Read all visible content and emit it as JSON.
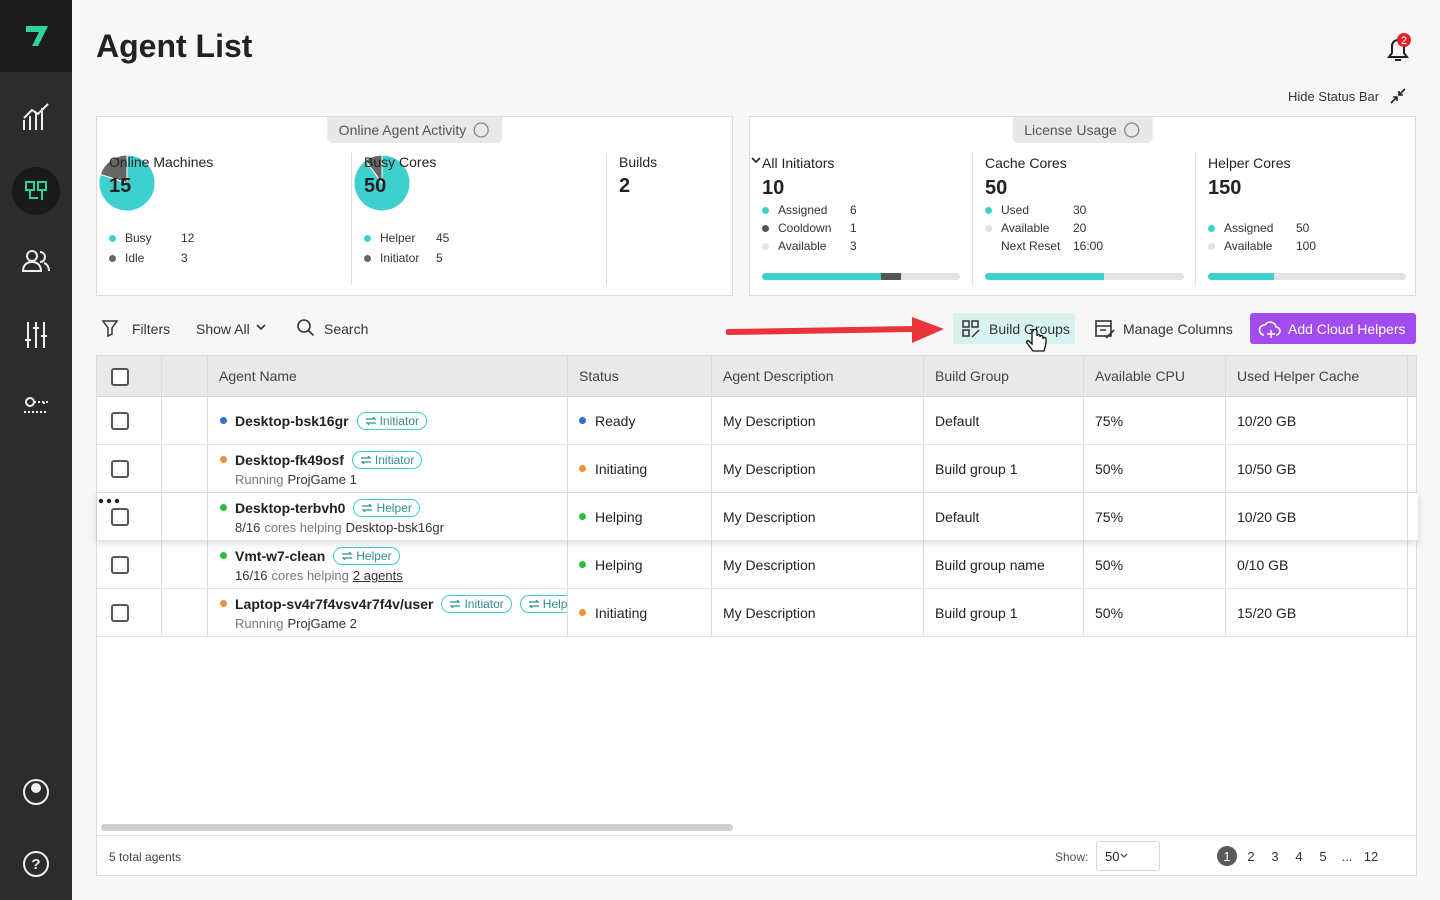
{
  "header": {
    "title": "Agent List",
    "notifications": 2,
    "hide_status_bar": "Hide Status Bar"
  },
  "online_agent_activity": {
    "title": "Online Agent Activity",
    "cards": [
      {
        "label": "Online Machines",
        "total": 15,
        "legend": [
          {
            "name": "Busy",
            "value": 12,
            "color": "#3ecfcf"
          },
          {
            "name": "Idle",
            "value": 3,
            "color": "#666666"
          }
        ]
      },
      {
        "label": "Busy Cores",
        "total": 50,
        "legend": [
          {
            "name": "Helper",
            "value": 45,
            "color": "#3ecfcf"
          },
          {
            "name": "Initiator",
            "value": 5,
            "color": "#666666"
          }
        ]
      },
      {
        "label": "Builds",
        "total": 2
      }
    ]
  },
  "license_usage": {
    "title": "License Usage",
    "cards": [
      {
        "label": "All Initiators",
        "total": 10,
        "legend": [
          {
            "name": "Assigned",
            "value": 6,
            "color": "#3ecfcf"
          },
          {
            "name": "Cooldown",
            "value": 1,
            "color": "#555555"
          },
          {
            "name": "Available",
            "value": 3,
            "color": "#e3e3e3"
          }
        ]
      },
      {
        "label": "Cache Cores",
        "total": 50,
        "legend": [
          {
            "name": "Used",
            "value": 30,
            "color": "#3ecfcf"
          },
          {
            "name": "Available",
            "value": 20,
            "color": "#e3e3e3"
          }
        ],
        "next_reset": {
          "label": "Next Reset",
          "value": "16:00"
        }
      },
      {
        "label": "Helper Cores",
        "total": 150,
        "legend": [
          {
            "name": "Assigned",
            "value": 50,
            "color": "#3ecfcf"
          },
          {
            "name": "Available",
            "value": 100,
            "color": "#e3e3e3"
          }
        ]
      }
    ]
  },
  "toolbar": {
    "filters": "Filters",
    "show_all": "Show All",
    "search": "Search",
    "build_groups": "Build Groups",
    "manage_columns": "Manage Columns",
    "add_cloud_helpers": "Add Cloud Helpers"
  },
  "table": {
    "columns": [
      "Agent Name",
      "Status",
      "Agent Description",
      "Build Group",
      "Available CPU",
      "Used Helper Cache"
    ],
    "rows": [
      {
        "name": "Desktop-bsk16gr",
        "tags": [
          "Initiator"
        ],
        "sub": [],
        "status": "Ready",
        "color": "#2f6fd6",
        "description": "My Description",
        "build_group": "Default",
        "cpu": "75%",
        "cache": "10/20 GB"
      },
      {
        "name": "Desktop-fk49osf",
        "tags": [
          "Initiator"
        ],
        "sub": [
          {
            "text": "Running",
            "strong": false
          },
          {
            "text": "ProjGame 1",
            "strong": true
          }
        ],
        "status": "Initiating",
        "color": "#f0903a",
        "description": "My Description",
        "build_group": "Build group 1",
        "cpu": "50%",
        "cache": "10/50 GB"
      },
      {
        "name": "Desktop-terbvh0",
        "tags": [
          "Helper"
        ],
        "sub": [
          {
            "text": "8/16",
            "strong": true
          },
          {
            "text": "cores helping",
            "strong": false
          },
          {
            "text": "Desktop-bsk16gr",
            "strong": true
          }
        ],
        "status": "Helping",
        "color": "#27c03a",
        "description": "My Description",
        "build_group": "Default",
        "cpu": "75%",
        "cache": "10/20 GB"
      },
      {
        "name": "Vmt-w7-clean",
        "tags": [
          "Helper"
        ],
        "sub": [
          {
            "text": "16/16",
            "strong": true
          },
          {
            "text": "cores helping",
            "strong": false
          },
          {
            "text": "2 agents",
            "strong": true
          }
        ],
        "status": "Helping",
        "color": "#27c03a",
        "description": "My Description",
        "build_group": "Build group name",
        "cpu": "50%",
        "cache": "0/10 GB"
      },
      {
        "name": "Laptop-sv4r7f4vsv4r7f4v/user",
        "tags": [
          "Initiator",
          "Helper"
        ],
        "sub": [
          {
            "text": "Running",
            "strong": false
          },
          {
            "text": "ProjGame 2",
            "strong": true
          }
        ],
        "status": "Initiating",
        "color": "#f0903a",
        "description": "My Description",
        "build_group": "Build group 1",
        "cpu": "50%",
        "cache": "15/20 GB"
      }
    ]
  },
  "footer": {
    "total_count": 5,
    "total_label": "total agents",
    "show_label": "Show:",
    "page_size": 50,
    "pages": [
      1,
      2,
      3,
      4,
      5,
      "...",
      12
    ],
    "current_page": 1
  }
}
